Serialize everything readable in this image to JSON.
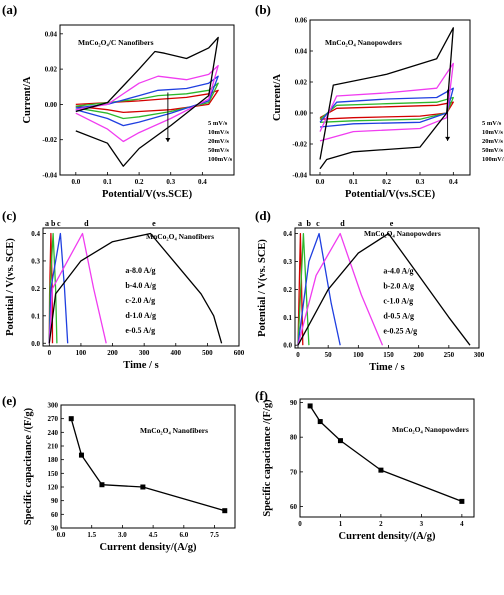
{
  "chart_data": [
    {
      "panel": "(a)",
      "type": "line",
      "annotation": "MnCo₂O₄/C Nanofibers",
      "xlabel": "Potential/V(vs.SCE)",
      "ylabel": "Current/A",
      "xlim": [
        -0.05,
        0.5
      ],
      "ylim": [
        -0.04,
        0.045
      ],
      "xticks": [
        0.0,
        0.1,
        0.2,
        0.3,
        0.4
      ],
      "xtick_labels": [
        "0.0",
        "0.1",
        "0.2",
        "0.3",
        "0.4"
      ],
      "yticks": [
        -0.04,
        -0.02,
        0.0,
        0.02,
        0.04
      ],
      "ytick_labels": [
        "-0.04",
        "-0.02",
        "0.00",
        "0.02",
        "0.04"
      ],
      "legend_position": "bottom-right",
      "legend_arrow": "down",
      "series": [
        {
          "name": "5 mV/s",
          "color": "#d40000",
          "values": [
            [
              0.0,
              0.0
            ],
            [
              0.1,
              0.001
            ],
            [
              0.2,
              0.002
            ],
            [
              0.27,
              0.003
            ],
            [
              0.35,
              0.004
            ],
            [
              0.42,
              0.006
            ],
            [
              0.45,
              0.008
            ],
            [
              0.42,
              0.0
            ],
            [
              0.3,
              -0.003
            ],
            [
              0.2,
              -0.004
            ],
            [
              0.15,
              -0.0045
            ],
            [
              0.1,
              -0.003
            ],
            [
              0.0,
              -0.001
            ]
          ]
        },
        {
          "name": "10mV/s",
          "color": "#2db82d",
          "values": [
            [
              0.0,
              -0.001
            ],
            [
              0.1,
              0.001
            ],
            [
              0.2,
              0.003
            ],
            [
              0.26,
              0.005
            ],
            [
              0.35,
              0.006
            ],
            [
              0.42,
              0.008
            ],
            [
              0.45,
              0.012
            ],
            [
              0.42,
              0.001
            ],
            [
              0.3,
              -0.004
            ],
            [
              0.2,
              -0.007
            ],
            [
              0.15,
              -0.008
            ],
            [
              0.1,
              -0.005
            ],
            [
              0.0,
              -0.002
            ]
          ]
        },
        {
          "name": "20mV/s",
          "color": "#1f3fe0",
          "values": [
            [
              0.0,
              -0.002
            ],
            [
              0.1,
              0.0
            ],
            [
              0.2,
              0.005
            ],
            [
              0.26,
              0.008
            ],
            [
              0.35,
              0.009
            ],
            [
              0.42,
              0.012
            ],
            [
              0.45,
              0.016
            ],
            [
              0.42,
              0.002
            ],
            [
              0.3,
              -0.005
            ],
            [
              0.2,
              -0.01
            ],
            [
              0.15,
              -0.012
            ],
            [
              0.1,
              -0.008
            ],
            [
              0.0,
              -0.003
            ]
          ]
        },
        {
          "name": "50mV/s",
          "color": "#f03cf0",
          "values": [
            [
              0.0,
              -0.003
            ],
            [
              0.1,
              0.0
            ],
            [
              0.2,
              0.012
            ],
            [
              0.26,
              0.016
            ],
            [
              0.35,
              0.014
            ],
            [
              0.42,
              0.017
            ],
            [
              0.45,
              0.022
            ],
            [
              0.42,
              0.003
            ],
            [
              0.3,
              -0.008
            ],
            [
              0.2,
              -0.016
            ],
            [
              0.15,
              -0.021
            ],
            [
              0.1,
              -0.014
            ],
            [
              0.0,
              -0.005
            ]
          ]
        },
        {
          "name": "100mV/s",
          "color": "#000000",
          "values": [
            [
              0.0,
              -0.004
            ],
            [
              0.1,
              0.001
            ],
            [
              0.2,
              0.02
            ],
            [
              0.25,
              0.03
            ],
            [
              0.28,
              0.029
            ],
            [
              0.35,
              0.026
            ],
            [
              0.42,
              0.032
            ],
            [
              0.45,
              0.038
            ],
            [
              0.42,
              0.005
            ],
            [
              0.3,
              -0.012
            ],
            [
              0.2,
              -0.025
            ],
            [
              0.15,
              -0.035
            ],
            [
              0.1,
              -0.022
            ],
            [
              0.0,
              -0.015
            ]
          ]
        }
      ]
    },
    {
      "panel": "(b)",
      "type": "line",
      "annotation": "MnCo₂O₄ Nanopowders",
      "xlabel": "Potential/V(vs.SCE)",
      "ylabel": "Current/A",
      "xlim": [
        -0.03,
        0.45
      ],
      "ylim": [
        -0.04,
        0.06
      ],
      "xticks": [
        0.0,
        0.1,
        0.2,
        0.3,
        0.4
      ],
      "xtick_labels": [
        "0.0",
        "0.1",
        "0.2",
        "0.3",
        "0.4"
      ],
      "yticks": [
        -0.04,
        -0.02,
        0.0,
        0.02,
        0.04,
        0.06
      ],
      "ytick_labels": [
        "-0.04",
        "-0.02",
        "0.00",
        "0.02",
        "0.04",
        "0.06"
      ],
      "legend_position": "bottom-right",
      "legend_arrow": "down",
      "series": [
        {
          "name": "5 mV/s",
          "color": "#d40000",
          "values": [
            [
              0.0,
              -0.003
            ],
            [
              0.05,
              0.003
            ],
            [
              0.2,
              0.004
            ],
            [
              0.35,
              0.005
            ],
            [
              0.4,
              0.007
            ],
            [
              0.38,
              0.0
            ],
            [
              0.3,
              -0.002
            ],
            [
              0.1,
              -0.003
            ],
            [
              0.0,
              -0.004
            ]
          ]
        },
        {
          "name": "10mV/s",
          "color": "#2db82d",
          "values": [
            [
              0.0,
              -0.004
            ],
            [
              0.05,
              0.005
            ],
            [
              0.2,
              0.006
            ],
            [
              0.35,
              0.007
            ],
            [
              0.4,
              0.01
            ],
            [
              0.38,
              0.0
            ],
            [
              0.3,
              -0.004
            ],
            [
              0.1,
              -0.005
            ],
            [
              0.0,
              -0.006
            ]
          ]
        },
        {
          "name": "20mV/s",
          "color": "#1f3fe0",
          "values": [
            [
              0.0,
              -0.006
            ],
            [
              0.05,
              0.007
            ],
            [
              0.2,
              0.009
            ],
            [
              0.35,
              0.01
            ],
            [
              0.4,
              0.016
            ],
            [
              0.38,
              0.0
            ],
            [
              0.3,
              -0.006
            ],
            [
              0.1,
              -0.007
            ],
            [
              0.0,
              -0.009
            ]
          ]
        },
        {
          "name": "50mV/s",
          "color": "#f03cf0",
          "values": [
            [
              0.0,
              -0.012
            ],
            [
              0.05,
              0.011
            ],
            [
              0.2,
              0.013
            ],
            [
              0.35,
              0.016
            ],
            [
              0.4,
              0.032
            ],
            [
              0.38,
              -0.003
            ],
            [
              0.3,
              -0.01
            ],
            [
              0.1,
              -0.012
            ],
            [
              0.0,
              -0.018
            ]
          ]
        },
        {
          "name": "100mV/s",
          "color": "#000000",
          "values": [
            [
              0.0,
              -0.03
            ],
            [
              0.04,
              0.018
            ],
            [
              0.2,
              0.025
            ],
            [
              0.35,
              0.035
            ],
            [
              0.4,
              0.055
            ],
            [
              0.38,
              0.0
            ],
            [
              0.3,
              -0.022
            ],
            [
              0.1,
              -0.025
            ],
            [
              0.02,
              -0.03
            ],
            [
              0.0,
              -0.036
            ]
          ]
        }
      ]
    },
    {
      "panel": "(c)",
      "type": "line",
      "annotation": "MnCo₂O₄ Nanofibers",
      "xlabel": "Time / s",
      "ylabel": "Potential / V(vs. SCE)",
      "xlim": [
        -20,
        600
      ],
      "ylim": [
        -0.01,
        0.42
      ],
      "xticks": [
        0,
        100,
        200,
        300,
        400,
        500,
        600
      ],
      "xtick_labels": [
        "0",
        "100",
        "200",
        "300",
        "400",
        "500",
        "600"
      ],
      "yticks": [
        0.0,
        0.1,
        0.2,
        0.3,
        0.4
      ],
      "ytick_labels": [
        "0.0",
        "0.1",
        "0.2",
        "0.3",
        "0.4"
      ],
      "curve_tags": [
        "a",
        "b",
        "c",
        "d",
        "e"
      ],
      "legend_entries": [
        "a-8.0 A/g",
        "b-4.0 A/g",
        "c-2.0 A/g",
        "d-1.0 A/g",
        "e-0.5 A/g"
      ],
      "series": [
        {
          "name": "a-8.0 A/g",
          "color": "#d40000",
          "values": [
            [
              0,
              0.0
            ],
            [
              1,
              0.18
            ],
            [
              5,
              0.4
            ],
            [
              9,
              0.2
            ],
            [
              10,
              0.0
            ]
          ]
        },
        {
          "name": "b-4.0 A/g",
          "color": "#2db82d",
          "values": [
            [
              0,
              0.0
            ],
            [
              2,
              0.2
            ],
            [
              12,
              0.4
            ],
            [
              20,
              0.2
            ],
            [
              24,
              0.0
            ]
          ]
        },
        {
          "name": "c-2.0 A/g",
          "color": "#1f3fe0",
          "values": [
            [
              0,
              0.0
            ],
            [
              5,
              0.2
            ],
            [
              35,
              0.4
            ],
            [
              48,
              0.2
            ],
            [
              58,
              0.0
            ]
          ]
        },
        {
          "name": "d-1.0 A/g",
          "color": "#f03cf0",
          "values": [
            [
              0,
              0.0
            ],
            [
              10,
              0.2
            ],
            [
              105,
              0.4
            ],
            [
              140,
              0.2
            ],
            [
              180,
              0.0
            ]
          ]
        },
        {
          "name": "e-0.5 A/g",
          "color": "#000000",
          "values": [
            [
              0,
              0.0
            ],
            [
              20,
              0.18
            ],
            [
              100,
              0.3
            ],
            [
              200,
              0.37
            ],
            [
              320,
              0.4
            ],
            [
              400,
              0.29
            ],
            [
              480,
              0.18
            ],
            [
              520,
              0.1
            ],
            [
              545,
              0.0
            ]
          ]
        }
      ]
    },
    {
      "panel": "(d)",
      "type": "line",
      "annotation": "MnCo₂O₄ Nanopowders",
      "xlabel": "Time / s",
      "ylabel": "Potential / V(vs. SCE)",
      "xlim": [
        -5,
        300
      ],
      "ylim": [
        -0.01,
        0.42
      ],
      "xticks": [
        0,
        50,
        100,
        150,
        200,
        250,
        300
      ],
      "xtick_labels": [
        "0",
        "50",
        "100",
        "150",
        "200",
        "250",
        "300"
      ],
      "yticks": [
        0.0,
        0.1,
        0.2,
        0.3,
        0.4
      ],
      "ytick_labels": [
        "0.0",
        "0.1",
        "0.2",
        "0.3",
        "0.4"
      ],
      "curve_tags": [
        "a",
        "b",
        "c",
        "d",
        "e"
      ],
      "legend_entries": [
        "a-4.0 A/g",
        "b-2.0 A/g",
        "c-1.0 A/g",
        "d-0.5 A/g",
        "e-0.25 A/g"
      ],
      "series": [
        {
          "name": "a-4.0 A/g",
          "color": "#d40000",
          "values": [
            [
              0,
              0.0
            ],
            [
              4,
              0.4
            ],
            [
              8,
              0.0
            ]
          ]
        },
        {
          "name": "b-2.0 A/g",
          "color": "#2db82d",
          "values": [
            [
              0,
              0.0
            ],
            [
              9,
              0.4
            ],
            [
              18,
              0.0
            ]
          ]
        },
        {
          "name": "c-1.0 A/g",
          "color": "#1f3fe0",
          "values": [
            [
              0,
              0.0
            ],
            [
              18,
              0.3
            ],
            [
              35,
              0.4
            ],
            [
              55,
              0.15
            ],
            [
              70,
              0.0
            ]
          ]
        },
        {
          "name": "d-0.5 A/g",
          "color": "#f03cf0",
          "values": [
            [
              0,
              0.0
            ],
            [
              30,
              0.25
            ],
            [
              70,
              0.4
            ],
            [
              105,
              0.18
            ],
            [
              140,
              0.0
            ]
          ]
        },
        {
          "name": "e-0.25 A/g",
          "color": "#000000",
          "values": [
            [
              0,
              0.0
            ],
            [
              50,
              0.2
            ],
            [
              100,
              0.33
            ],
            [
              150,
              0.4
            ],
            [
              200,
              0.25
            ],
            [
              250,
              0.1
            ],
            [
              285,
              0.0
            ]
          ]
        }
      ]
    },
    {
      "panel": "(e)",
      "type": "line",
      "annotation": "MnCo₂O₄ Nanofibers",
      "xlabel": "Current density/(A/g)",
      "ylabel": "Specific capacitance /(F/g)",
      "xlim": [
        0.0,
        8.5
      ],
      "ylim": [
        30,
        300
      ],
      "xticks": [
        0.0,
        1.5,
        3.0,
        4.5,
        6.0,
        7.5
      ],
      "xtick_labels": [
        "0.0",
        "1.5",
        "3.0",
        "4.5",
        "6.0",
        "7.5"
      ],
      "yticks": [
        30,
        60,
        90,
        120,
        150,
        180,
        210,
        240,
        270,
        300
      ],
      "ytick_labels": [
        "30",
        "60",
        "90",
        "120",
        "150",
        "180",
        "210",
        "240",
        "270",
        "300"
      ],
      "series": [
        {
          "color": "#000000",
          "values": [
            [
              0.5,
              270
            ],
            [
              1.0,
              190
            ],
            [
              2.0,
              125
            ],
            [
              4.0,
              120
            ],
            [
              8.0,
              68
            ]
          ]
        }
      ]
    },
    {
      "panel": "(f)",
      "type": "line",
      "annotation": "MnCo₂O₄ Nanopowders",
      "xlabel": "Current density/(A/g)",
      "ylabel": "Specific capacitance /(F/g)",
      "xlim": [
        0,
        4.3
      ],
      "ylim": [
        57,
        91
      ],
      "xticks": [
        0,
        1,
        2,
        3,
        4
      ],
      "xtick_labels": [
        "0",
        "1",
        "2",
        "3",
        "4"
      ],
      "yticks": [
        60,
        70,
        80,
        90
      ],
      "ytick_labels": [
        "60",
        "70",
        "80",
        "90"
      ],
      "series": [
        {
          "color": "#000000",
          "values": [
            [
              0.25,
              89
            ],
            [
              0.5,
              84.5
            ],
            [
              1.0,
              79
            ],
            [
              2.0,
              70.5
            ],
            [
              4.0,
              61.5
            ]
          ]
        }
      ]
    }
  ]
}
